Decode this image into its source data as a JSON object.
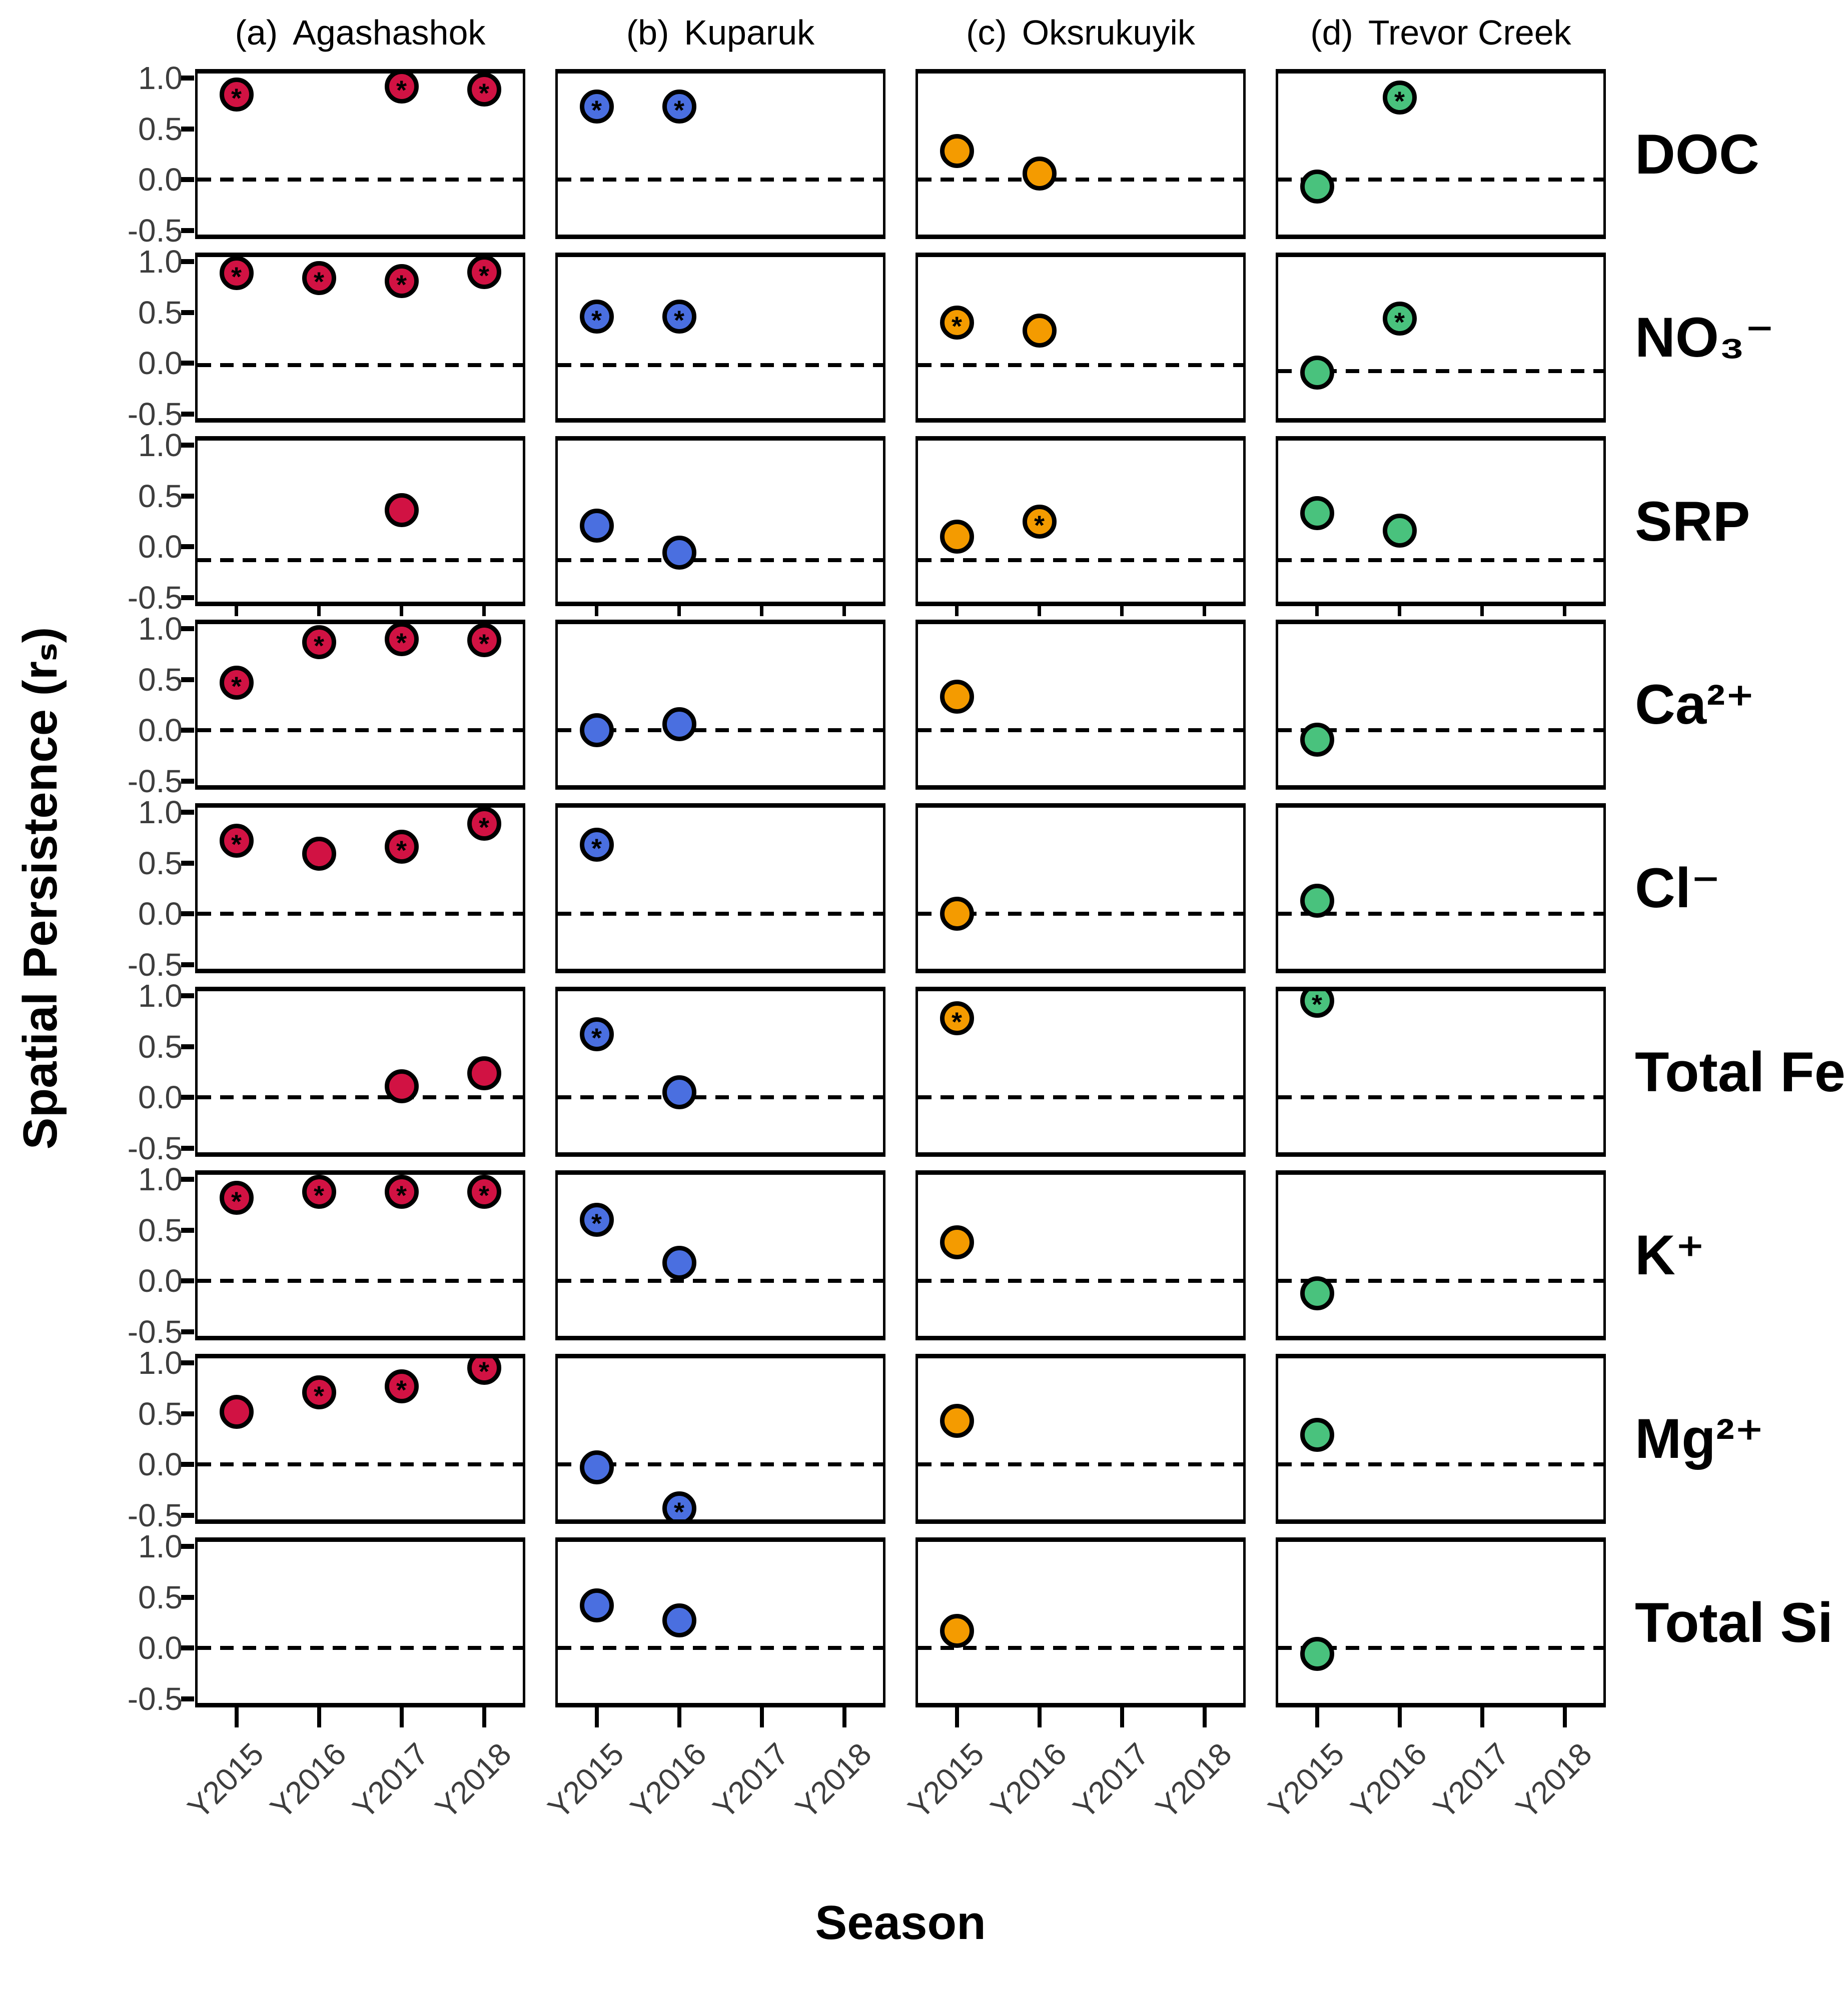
{
  "chart_data": {
    "type": "scatter",
    "xlabel": "Season",
    "ylabel": "Spatial Persistence (rₛ)",
    "significance_marker": "*",
    "x_categories": [
      "Y2015",
      "Y2016",
      "Y2017",
      "Y2018"
    ],
    "y_tick_labels": [
      "1.0",
      "0.5",
      "0.0",
      "-0.5"
    ],
    "y_tick_values": [
      1.0,
      0.5,
      0.0,
      -0.5
    ],
    "ylim": [
      -0.585,
      1.09
    ],
    "grid": false,
    "legend_position": "none",
    "reference_line_style": "dashed",
    "sites": [
      {
        "panel_letter": "(a)",
        "name": "Agashashok",
        "color": "#D11243"
      },
      {
        "panel_letter": "(b)",
        "name": "Kuparuk",
        "color": "#4A6FE0"
      },
      {
        "panel_letter": "(c)",
        "name": "Oksrukuyik",
        "color": "#F49B00"
      },
      {
        "panel_letter": "(d)",
        "name": "Trevor Creek",
        "color": "#49C27D"
      }
    ],
    "solutes": [
      {
        "label": "DOC",
        "ref_line": [
          0,
          0,
          0,
          0
        ],
        "series": [
          {
            "site": "Agashashok",
            "points": [
              {
                "season": "Y2015",
                "value": 0.84,
                "significant": true
              },
              {
                "season": "Y2017",
                "value": 0.92,
                "significant": true
              },
              {
                "season": "Y2018",
                "value": 0.89,
                "significant": true
              }
            ]
          },
          {
            "site": "Kuparuk",
            "points": [
              {
                "season": "Y2015",
                "value": 0.72,
                "significant": true
              },
              {
                "season": "Y2016",
                "value": 0.72,
                "significant": true
              }
            ]
          },
          {
            "site": "Oksrukuyik",
            "points": [
              {
                "season": "Y2015",
                "value": 0.28,
                "significant": false
              },
              {
                "season": "Y2016",
                "value": 0.06,
                "significant": false
              }
            ]
          },
          {
            "site": "Trevor Creek",
            "points": [
              {
                "season": "Y2015",
                "value": -0.07,
                "significant": false
              },
              {
                "season": "Y2016",
                "value": 0.81,
                "significant": true
              }
            ]
          }
        ]
      },
      {
        "label": "NO₃⁻",
        "ref_line": [
          -0.02,
          -0.02,
          -0.02,
          -0.08
        ],
        "series": [
          {
            "site": "Agashashok",
            "points": [
              {
                "season": "Y2015",
                "value": 0.89,
                "significant": true
              },
              {
                "season": "Y2016",
                "value": 0.84,
                "significant": true
              },
              {
                "season": "Y2017",
                "value": 0.81,
                "significant": true
              },
              {
                "season": "Y2018",
                "value": 0.9,
                "significant": true
              }
            ]
          },
          {
            "site": "Kuparuk",
            "points": [
              {
                "season": "Y2015",
                "value": 0.46,
                "significant": true
              },
              {
                "season": "Y2016",
                "value": 0.46,
                "significant": true
              }
            ]
          },
          {
            "site": "Oksrukuyik",
            "points": [
              {
                "season": "Y2015",
                "value": 0.4,
                "significant": true
              },
              {
                "season": "Y2016",
                "value": 0.32,
                "significant": false
              }
            ]
          },
          {
            "site": "Trevor Creek",
            "points": [
              {
                "season": "Y2015",
                "value": -0.09,
                "significant": false
              },
              {
                "season": "Y2016",
                "value": 0.44,
                "significant": true
              }
            ]
          }
        ]
      },
      {
        "label": "SRP",
        "ref_line": [
          -0.13,
          -0.13,
          -0.13,
          -0.13
        ],
        "series": [
          {
            "site": "Agashashok",
            "points": [
              {
                "season": "Y2017",
                "value": 0.36,
                "significant": false
              }
            ]
          },
          {
            "site": "Kuparuk",
            "points": [
              {
                "season": "Y2015",
                "value": 0.21,
                "significant": false
              },
              {
                "season": "Y2016",
                "value": -0.06,
                "significant": false
              }
            ]
          },
          {
            "site": "Oksrukuyik",
            "points": [
              {
                "season": "Y2015",
                "value": 0.1,
                "significant": false
              },
              {
                "season": "Y2016",
                "value": 0.25,
                "significant": true
              }
            ]
          },
          {
            "site": "Trevor Creek",
            "points": [
              {
                "season": "Y2015",
                "value": 0.33,
                "significant": false
              },
              {
                "season": "Y2016",
                "value": 0.16,
                "significant": false
              }
            ]
          }
        ]
      },
      {
        "label": "Ca²⁺",
        "ref_line": [
          0,
          0,
          0,
          0
        ],
        "series": [
          {
            "site": "Agashashok",
            "points": [
              {
                "season": "Y2015",
                "value": 0.47,
                "significant": true
              },
              {
                "season": "Y2016",
                "value": 0.87,
                "significant": true
              },
              {
                "season": "Y2017",
                "value": 0.9,
                "significant": true
              },
              {
                "season": "Y2018",
                "value": 0.89,
                "significant": true
              }
            ]
          },
          {
            "site": "Kuparuk",
            "points": [
              {
                "season": "Y2015",
                "value": 0.0,
                "significant": false
              },
              {
                "season": "Y2016",
                "value": 0.06,
                "significant": false
              }
            ]
          },
          {
            "site": "Oksrukuyik",
            "points": [
              {
                "season": "Y2015",
                "value": 0.33,
                "significant": false
              }
            ]
          },
          {
            "site": "Trevor Creek",
            "points": [
              {
                "season": "Y2015",
                "value": -0.09,
                "significant": false
              }
            ]
          }
        ]
      },
      {
        "label": "Cl⁻",
        "ref_line": [
          0,
          0,
          0,
          0
        ],
        "series": [
          {
            "site": "Agashashok",
            "points": [
              {
                "season": "Y2015",
                "value": 0.72,
                "significant": true
              },
              {
                "season": "Y2016",
                "value": 0.59,
                "significant": false
              },
              {
                "season": "Y2017",
                "value": 0.66,
                "significant": true
              },
              {
                "season": "Y2018",
                "value": 0.89,
                "significant": true
              }
            ]
          },
          {
            "site": "Kuparuk",
            "points": [
              {
                "season": "Y2015",
                "value": 0.68,
                "significant": true
              }
            ]
          },
          {
            "site": "Oksrukuyik",
            "points": [
              {
                "season": "Y2015",
                "value": 0.0,
                "significant": false
              }
            ]
          },
          {
            "site": "Trevor Creek",
            "points": [
              {
                "season": "Y2015",
                "value": 0.13,
                "significant": false
              }
            ]
          }
        ]
      },
      {
        "label": "Total Fe",
        "ref_line": [
          0,
          0,
          0,
          0
        ],
        "series": [
          {
            "site": "Agashashok",
            "points": [
              {
                "season": "Y2017",
                "value": 0.11,
                "significant": false
              },
              {
                "season": "Y2018",
                "value": 0.24,
                "significant": false
              }
            ]
          },
          {
            "site": "Kuparuk",
            "points": [
              {
                "season": "Y2015",
                "value": 0.62,
                "significant": true
              },
              {
                "season": "Y2016",
                "value": 0.05,
                "significant": false
              }
            ]
          },
          {
            "site": "Oksrukuyik",
            "points": [
              {
                "season": "Y2015",
                "value": 0.78,
                "significant": true
              }
            ]
          },
          {
            "site": "Trevor Creek",
            "points": [
              {
                "season": "Y2015",
                "value": 0.95,
                "significant": true
              }
            ]
          }
        ]
      },
      {
        "label": "K⁺",
        "ref_line": [
          0,
          0,
          0,
          0
        ],
        "series": [
          {
            "site": "Agashashok",
            "points": [
              {
                "season": "Y2015",
                "value": 0.82,
                "significant": true
              },
              {
                "season": "Y2016",
                "value": 0.88,
                "significant": true
              },
              {
                "season": "Y2017",
                "value": 0.88,
                "significant": true
              },
              {
                "season": "Y2018",
                "value": 0.88,
                "significant": true
              }
            ]
          },
          {
            "site": "Kuparuk",
            "points": [
              {
                "season": "Y2015",
                "value": 0.6,
                "significant": true
              },
              {
                "season": "Y2016",
                "value": 0.18,
                "significant": false
              }
            ]
          },
          {
            "site": "Oksrukuyik",
            "points": [
              {
                "season": "Y2015",
                "value": 0.38,
                "significant": false
              }
            ]
          },
          {
            "site": "Trevor Creek",
            "points": [
              {
                "season": "Y2015",
                "value": -0.12,
                "significant": false
              }
            ]
          }
        ]
      },
      {
        "label": "Mg²⁺",
        "ref_line": [
          0,
          0,
          0,
          0
        ],
        "series": [
          {
            "site": "Agashashok",
            "points": [
              {
                "season": "Y2015",
                "value": 0.52,
                "significant": false
              },
              {
                "season": "Y2016",
                "value": 0.71,
                "significant": true
              },
              {
                "season": "Y2017",
                "value": 0.77,
                "significant": true
              },
              {
                "season": "Y2018",
                "value": 0.95,
                "significant": true
              }
            ]
          },
          {
            "site": "Kuparuk",
            "points": [
              {
                "season": "Y2015",
                "value": -0.03,
                "significant": false
              },
              {
                "season": "Y2016",
                "value": -0.43,
                "significant": true
              }
            ]
          },
          {
            "site": "Oksrukuyik",
            "points": [
              {
                "season": "Y2015",
                "value": 0.43,
                "significant": false
              }
            ]
          },
          {
            "site": "Trevor Creek",
            "points": [
              {
                "season": "Y2015",
                "value": 0.29,
                "significant": false
              }
            ]
          }
        ]
      },
      {
        "label": "Total Si",
        "ref_line": [
          0,
          0,
          0,
          0
        ],
        "series": [
          {
            "site": "Agashashok",
            "points": []
          },
          {
            "site": "Kuparuk",
            "points": [
              {
                "season": "Y2015",
                "value": 0.42,
                "significant": false
              },
              {
                "season": "Y2016",
                "value": 0.27,
                "significant": false
              }
            ]
          },
          {
            "site": "Oksrukuyik",
            "points": [
              {
                "season": "Y2015",
                "value": 0.17,
                "significant": false
              }
            ]
          },
          {
            "site": "Trevor Creek",
            "points": [
              {
                "season": "Y2015",
                "value": -0.06,
                "significant": false
              }
            ]
          }
        ]
      }
    ]
  }
}
